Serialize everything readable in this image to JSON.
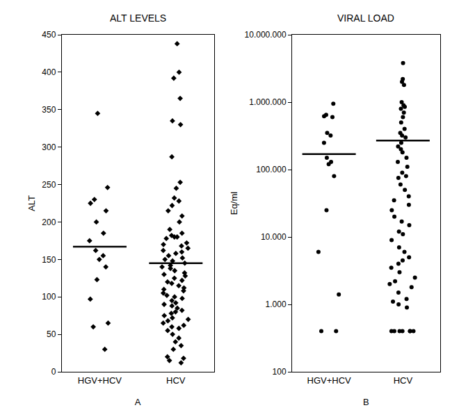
{
  "chart_data": [
    {
      "type": "strip",
      "title": "ALT LEVELS",
      "y_label": "ALT",
      "x_label": "A",
      "categories": [
        "HGV+HCV",
        "HCV"
      ],
      "values": [
        [
          345,
          230,
          225,
          246,
          215,
          200,
          185,
          175,
          162,
          155,
          150,
          140,
          123,
          97,
          65,
          60,
          30
        ],
        [
          438,
          400,
          392,
          365,
          335,
          330,
          287,
          253,
          245,
          232,
          228,
          222,
          215,
          208,
          200,
          190,
          185,
          182,
          180,
          180,
          178,
          172,
          170,
          168,
          165,
          162,
          160,
          158,
          155,
          152,
          150,
          148,
          145,
          142,
          140,
          138,
          135,
          132,
          130,
          128,
          125,
          122,
          120,
          118,
          115,
          112,
          110,
          108,
          105,
          102,
          100,
          98,
          95,
          92,
          90,
          88,
          85,
          82,
          80,
          78,
          75,
          72,
          70,
          68,
          65,
          62,
          60,
          58,
          55,
          50,
          45,
          40,
          35,
          30,
          20,
          18,
          15,
          12
        ]
      ],
      "means": [
        167,
        145
      ],
      "ylim": [
        0,
        450
      ],
      "yticks": [
        0,
        50,
        100,
        150,
        200,
        250,
        300,
        350,
        400,
        450
      ],
      "marker": "diamond",
      "color": "#000000",
      "grid": false
    },
    {
      "type": "strip",
      "title": "VIRAL LOAD",
      "y_label": "Eq/ml",
      "x_label": "B",
      "categories": [
        "HGV+HCV",
        "HCV"
      ],
      "values": [
        [
          950000,
          650000,
          620000,
          600000,
          350000,
          320000,
          250000,
          150000,
          130000,
          120000,
          80000,
          25000,
          6000,
          1400,
          400,
          400
        ],
        [
          3800000,
          2200000,
          2000000,
          1800000,
          1000000,
          900000,
          850000,
          800000,
          700000,
          600000,
          500000,
          400000,
          350000,
          320000,
          300000,
          250000,
          220000,
          200000,
          180000,
          150000,
          130000,
          110000,
          90000,
          80000,
          75000,
          60000,
          50000,
          40000,
          35000,
          30000,
          25000,
          20000,
          17000,
          15000,
          12000,
          11000,
          9000,
          7000,
          6000,
          5000,
          4500,
          4000,
          3500,
          3000,
          2500,
          2200,
          2000,
          1800,
          1500,
          1200,
          1100,
          1000,
          900,
          400,
          400,
          400,
          400,
          400,
          400,
          400
        ]
      ],
      "means": [
        170000,
        270000
      ],
      "log": "y",
      "ylim": [
        100,
        10000000
      ],
      "yticks": [
        100,
        {
          "value": 1000,
          "label": "1.000"
        },
        {
          "value": 10000,
          "label": "10.000"
        },
        {
          "value": 100000,
          "label": "100.000"
        },
        {
          "value": 1000000,
          "label": "1.000.000"
        },
        {
          "value": 10000000,
          "label": "10.000.000"
        }
      ],
      "marker": "circle",
      "color": "#000000",
      "grid": false
    }
  ]
}
